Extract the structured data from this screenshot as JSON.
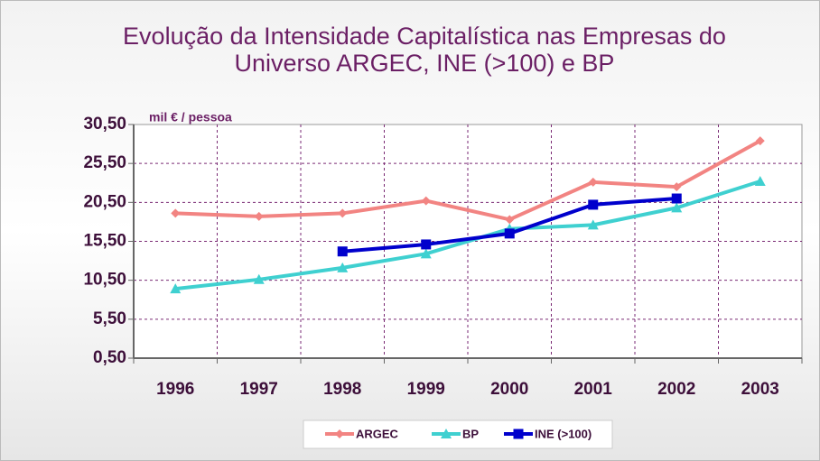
{
  "chart_data": {
    "type": "line",
    "title": [
      "Evolução da Intensidade Capitalística nas Empresas do",
      "Universo ARGEC, INE (>100) e BP"
    ],
    "annotation": "mil € / pessoa",
    "categories": [
      "1996",
      "1997",
      "1998",
      "1999",
      "2000",
      "2001",
      "2002",
      "2003"
    ],
    "series": [
      {
        "name": "ARGEC",
        "color": "#f28482",
        "marker": "diamond",
        "values": [
          19.1,
          18.7,
          19.1,
          20.7,
          18.3,
          23.1,
          22.5,
          28.4
        ]
      },
      {
        "name": "BP",
        "color": "#3fd0d0",
        "marker": "triangle",
        "values": [
          9.4,
          10.6,
          12.1,
          13.9,
          17.1,
          17.6,
          19.8,
          23.2
        ]
      },
      {
        "name": "INE (>100)",
        "color": "#0000cc",
        "marker": "square",
        "values": [
          null,
          null,
          14.2,
          15.1,
          16.5,
          20.2,
          21.0,
          null
        ]
      }
    ],
    "ylim": [
      0.5,
      30.5
    ],
    "yticks": [
      {
        "value": 0.5,
        "label": "0,50"
      },
      {
        "value": 5.5,
        "label": "5,50"
      },
      {
        "value": 10.5,
        "label": "10,50"
      },
      {
        "value": 15.5,
        "label": "15,50"
      },
      {
        "value": 20.5,
        "label": "20,50"
      },
      {
        "value": 25.5,
        "label": "25,50"
      },
      {
        "value": 30.5,
        "label": "30,50"
      }
    ],
    "grid": true,
    "legend": "bottom"
  }
}
